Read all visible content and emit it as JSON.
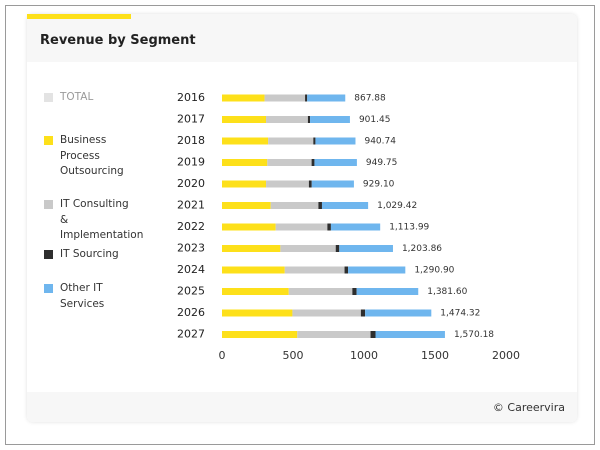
{
  "chart_data": {
    "type": "bar",
    "orientation": "horizontal",
    "stacked": true,
    "title": "Revenue by Segment",
    "categories": [
      "2016",
      "2017",
      "2018",
      "2019",
      "2020",
      "2021",
      "2022",
      "2023",
      "2024",
      "2025",
      "2026",
      "2027"
    ],
    "totals": {
      "name": "TOTAL",
      "color": "#e3e3e3",
      "values": [
        867.88,
        901.45,
        940.74,
        949.75,
        929.1,
        1029.42,
        1113.99,
        1203.86,
        1290.9,
        1381.6,
        1474.32,
        1570.18
      ],
      "value_labels": [
        "867.88",
        "901.45",
        "940.74",
        "949.75",
        "929.10",
        "1,029.42",
        "1,113.99",
        "1,203.86",
        "1,290.90",
        "1,381.60",
        "1,474.32",
        "1,570.18"
      ]
    },
    "series": [
      {
        "name": "Business Process Outsourcing",
        "color": "#fde01a",
        "values": [
          300,
          310,
          325,
          319,
          310,
          343,
          378,
          411,
          442,
          470,
          496,
          530
        ]
      },
      {
        "name": "IT Consulting & Implementation",
        "color": "#c9c9c9",
        "values": [
          285,
          295,
          318,
          312,
          302,
          336,
          364,
          390,
          421,
          448,
          482,
          516
        ]
      },
      {
        "name": "IT Sourcing",
        "color": "#2e2e2e",
        "values": [
          15,
          15,
          15,
          20,
          20,
          25,
          25,
          25,
          25,
          30,
          30,
          35
        ]
      },
      {
        "name": "Other IT Services",
        "color": "#6fb6ee",
        "values": [
          268,
          281,
          282,
          299,
          297,
          325,
          347,
          378,
          403,
          434,
          466,
          489
        ]
      }
    ],
    "xlim": [
      0,
      2000
    ],
    "xticks": [
      0,
      500,
      1000,
      1500,
      2000
    ],
    "grid": false,
    "legend": "left",
    "footer": "© Careervira"
  }
}
